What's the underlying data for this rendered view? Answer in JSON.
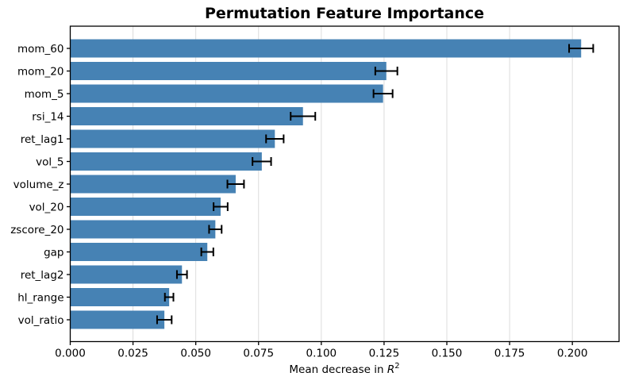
{
  "chart_data": {
    "type": "bar",
    "orientation": "horizontal",
    "title": "Permutation Feature Importance",
    "xlabel": "Mean decrease in R²",
    "xlabel_parts": {
      "prefix": "Mean decrease in ",
      "variable": "R",
      "exponent": "2"
    },
    "ylabel": "",
    "categories": [
      "mom_60",
      "mom_20",
      "mom_5",
      "rsi_14",
      "ret_lag1",
      "vol_5",
      "volume_z",
      "vol_20",
      "zscore_20",
      "gap",
      "ret_lag2",
      "hl_range",
      "vol_ratio"
    ],
    "values": [
      0.2035,
      0.1259,
      0.1246,
      0.0927,
      0.0815,
      0.0763,
      0.0659,
      0.0599,
      0.0578,
      0.0546,
      0.0445,
      0.0394,
      0.0375
    ],
    "errors": [
      0.0048,
      0.0044,
      0.0038,
      0.0049,
      0.0035,
      0.0037,
      0.0033,
      0.0028,
      0.0025,
      0.0024,
      0.002,
      0.0017,
      0.0029
    ],
    "xlim": [
      0,
      0.2186
    ],
    "x_ticks": [
      0,
      0.025,
      0.05,
      0.075,
      0.1,
      0.125,
      0.15,
      0.175,
      0.2
    ],
    "x_tick_labels": [
      "0.000",
      "0.025",
      "0.050",
      "0.075",
      "0.100",
      "0.125",
      "0.150",
      "0.175",
      "0.200"
    ],
    "grid": "vertical",
    "legend": "none",
    "bar_color": "#4682b4",
    "error_color": "#000000",
    "grid_color": "#dcdcdc",
    "spine_color": "#000000",
    "background_color": "#ffffff"
  }
}
